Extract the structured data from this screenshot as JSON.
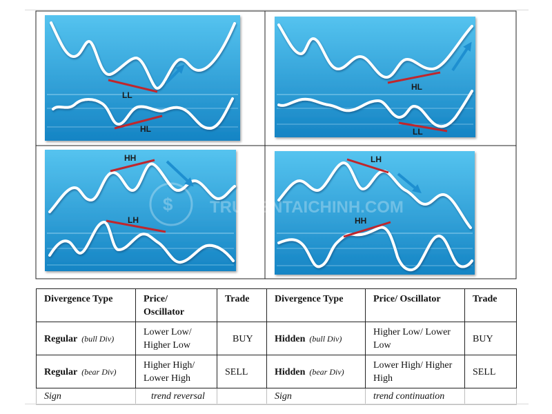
{
  "panels": [
    {
      "id": "regular-bull",
      "labels": {
        "price": "LL",
        "osc": "HL"
      },
      "arrow": "up",
      "trend": "price lower low, oscillator higher low"
    },
    {
      "id": "hidden-bull",
      "labels": {
        "price": "HL",
        "osc": "LL"
      },
      "arrow": "up",
      "trend": "price higher low, oscillator lower low"
    },
    {
      "id": "regular-bear",
      "labels": {
        "price": "HH",
        "osc": "LH"
      },
      "arrow": "down",
      "trend": "price higher high, oscillator lower high"
    },
    {
      "id": "hidden-bear",
      "labels": {
        "price": "LH",
        "osc": "HH"
      },
      "arrow": "down",
      "trend": "price lower high, oscillator higher high"
    }
  ],
  "watermark": "TRUVIENTAICHINH.COM",
  "colors": {
    "panel_top": "#55c3ef",
    "panel_bottom": "#1584c4",
    "divergence_line": "#c0262c",
    "arrow": "#1e8fd0",
    "curve": "#ffffff"
  },
  "table": {
    "headers": [
      "Divergence Type",
      "Price/ Oscillator",
      "Trade",
      "Divergence Type",
      "Price/ Oscillator",
      "Trade"
    ],
    "rows": [
      {
        "type_left": "Regular",
        "sub_left": "(bull Div)",
        "po_left": "Lower Low/ Higher Low",
        "trade_left": "BUY",
        "type_right": "Hidden",
        "sub_right": "(bull Div)",
        "po_right": "Higher Low/ Lower Low",
        "trade_right": "BUY"
      },
      {
        "type_left": "Regular",
        "sub_left": "(bear Div)",
        "po_left": "Higher High/ Lower High",
        "trade_left": "SELL",
        "type_right": "Hidden",
        "sub_right": "(bear Div)",
        "po_right": "Lower High/ Higher High",
        "trade_right": "SELL"
      }
    ],
    "sign": {
      "left_label": "Sign",
      "left_value": "trend reversal",
      "right_label": "Sign",
      "right_value": "trend continuation"
    }
  }
}
